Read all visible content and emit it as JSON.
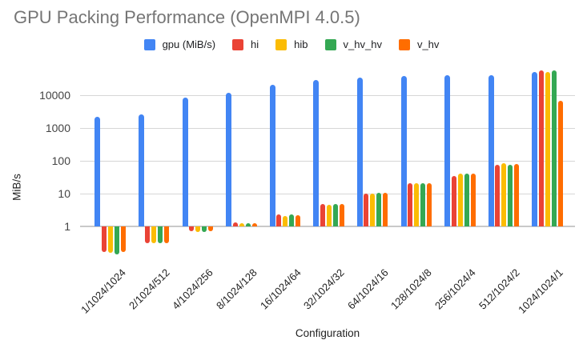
{
  "chart_data": {
    "type": "bar",
    "title": "GPU Packing Performance (OpenMPI 4.0.5)",
    "xlabel": "Configuration",
    "ylabel": "MiB/s",
    "y_scale": "log",
    "ylim": [
      0.1,
      60000
    ],
    "grid": true,
    "legend_position": "top",
    "y_ticks": [
      1,
      10,
      100,
      1000,
      10000
    ],
    "categories": [
      "1/1024/1024",
      "2/1024/512",
      "4/1024/256",
      "8/1024/128",
      "16/1024/64",
      "32/1024/32",
      "64/1024/16",
      "128/1024/8",
      "256/1024/4",
      "512/1024/2",
      "1024/1024/1"
    ],
    "series": [
      {
        "name": "gpu (MiB/s)",
        "color": "#4285F4",
        "values": [
          2200,
          2600,
          8500,
          12000,
          21000,
          29000,
          35000,
          38000,
          41000,
          40000,
          52000
        ]
      },
      {
        "name": "hi",
        "color": "#EA4335",
        "values": [
          0.16,
          0.3,
          0.7,
          1.3,
          2.3,
          4.8,
          10,
          20,
          35,
          75,
          56000
        ]
      },
      {
        "name": "hib",
        "color": "#FBBC04",
        "values": [
          0.15,
          0.3,
          0.65,
          1.25,
          2.1,
          4.5,
          10,
          21,
          41,
          82,
          52000
        ]
      },
      {
        "name": "v_hv_hv",
        "color": "#34A853",
        "values": [
          0.14,
          0.3,
          0.65,
          1.25,
          2.3,
          4.8,
          10.3,
          21,
          40,
          75,
          57000
        ]
      },
      {
        "name": "v_hv",
        "color": "#FF6D00",
        "values": [
          0.16,
          0.3,
          0.7,
          1.2,
          2.2,
          4.7,
          10.3,
          20,
          40,
          80,
          6800
        ]
      }
    ]
  }
}
